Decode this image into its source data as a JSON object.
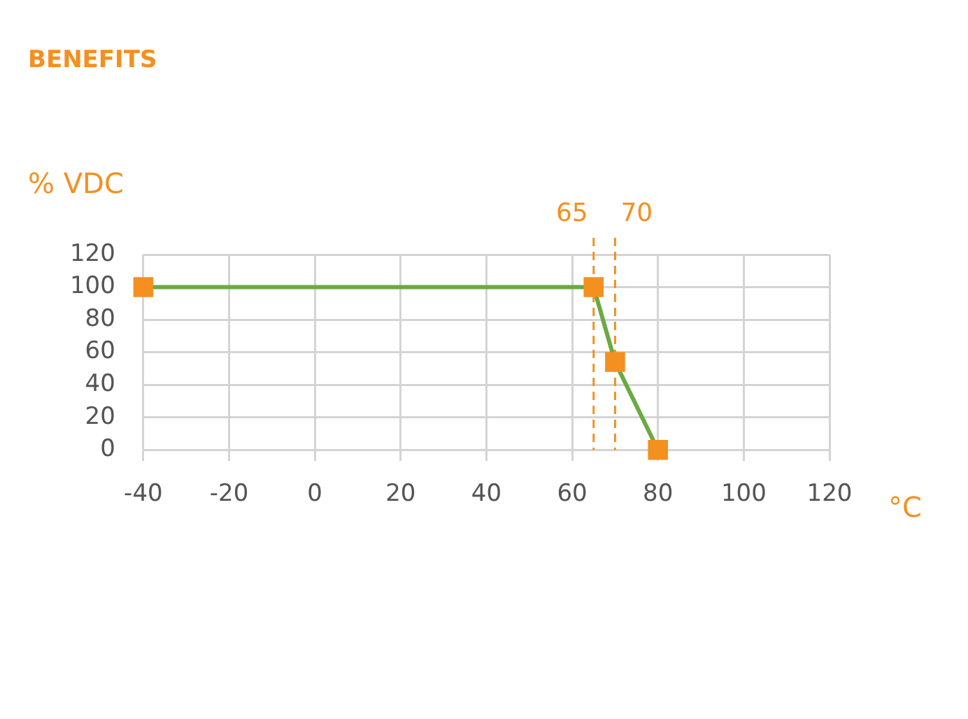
{
  "chart_data": {
    "type": "line",
    "title": "BENEFITS",
    "ylabel": "% VDC",
    "xlabel": "°C",
    "x": [
      -40,
      65,
      70,
      80
    ],
    "series": [
      {
        "color": "#6aaa44",
        "values": [
          100,
          100,
          54,
          0
        ]
      }
    ],
    "marker": "square",
    "line_style": "solid",
    "xlim": [
      -40,
      120
    ],
    "xticks": [
      -40,
      -20,
      0,
      20,
      40,
      60,
      80,
      100,
      120
    ],
    "ylim": [
      0,
      120
    ],
    "yticks": [
      0,
      20,
      40,
      60,
      80,
      100,
      120
    ],
    "grid": true,
    "legend": false,
    "ref_lines": [
      {
        "axis": "x",
        "value": 65,
        "label": "65",
        "color": "#f39020",
        "line_style": "dashed"
      },
      {
        "axis": "x",
        "value": 70,
        "label": "70",
        "color": "#f39020",
        "line_style": "dashed"
      }
    ]
  }
}
